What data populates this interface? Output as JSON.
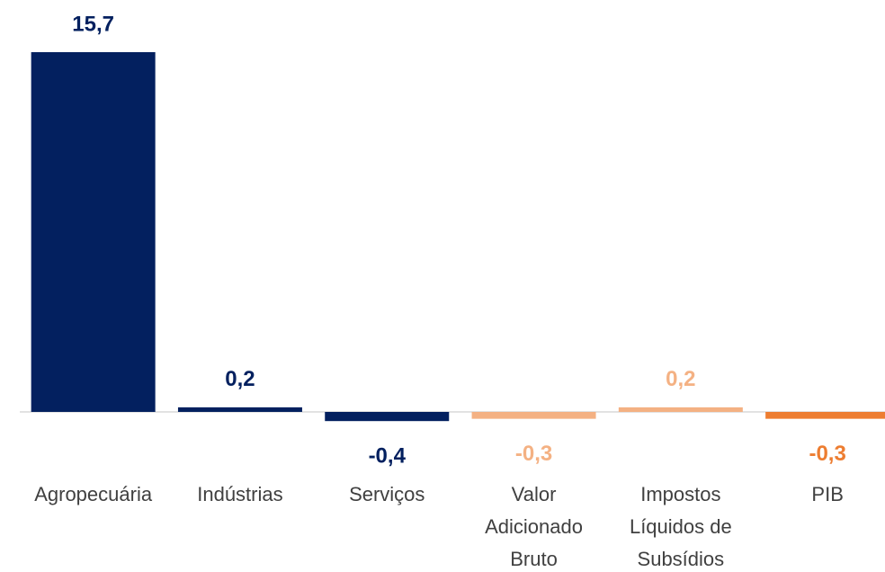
{
  "chart_data": {
    "type": "bar",
    "categories": [
      "Agropecuária",
      "Indústrias",
      "Serviços",
      "Valor Adicionado Bruto",
      "Impostos Líquidos de Subsídios",
      "PIB"
    ],
    "values": [
      15.7,
      0.2,
      -0.4,
      -0.3,
      0.2,
      -0.3
    ],
    "value_labels": [
      "15,7",
      "0,2",
      "-0,4",
      "-0,3",
      "0,2",
      "-0,3"
    ],
    "colors": [
      "#03205f",
      "#03205f",
      "#03205f",
      "#f4b183",
      "#f4b183",
      "#ed7d31"
    ]
  }
}
